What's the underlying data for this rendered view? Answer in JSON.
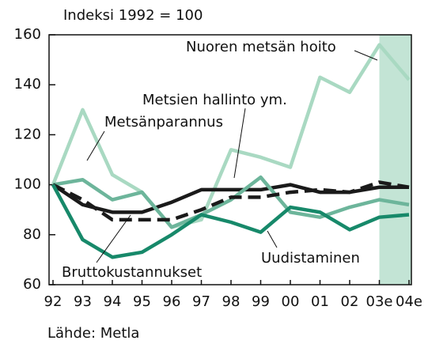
{
  "chart_data": {
    "type": "line",
    "title": "Indeksi 1992 = 100",
    "source": "Lähde: Metla",
    "categories": [
      "92",
      "93",
      "94",
      "95",
      "96",
      "97",
      "98",
      "99",
      "00",
      "01",
      "02",
      "03e",
      "04e"
    ],
    "ylim": [
      60,
      160
    ],
    "yticks": [
      60,
      80,
      100,
      120,
      140,
      160
    ],
    "series": [
      {
        "name": "Nuoren metsän hoito",
        "color": "#a9d9c2",
        "values": [
          100,
          130,
          104,
          97,
          83,
          86,
          114,
          111,
          107,
          143,
          137,
          156,
          142
        ]
      },
      {
        "name": "Metsien hallinto ym.",
        "color": "#1a1a1a",
        "values": [
          100,
          92,
          89,
          89,
          93,
          98,
          98,
          98,
          100,
          97,
          97,
          99,
          99
        ]
      },
      {
        "name": "Metsänparannus",
        "color": "#6db59b",
        "values": [
          100,
          102,
          94,
          97,
          83,
          88,
          94,
          103,
          89,
          87,
          91,
          94,
          92
        ]
      },
      {
        "name": "Bruttokustannukset",
        "color": "#1a1a1a",
        "dashed": true,
        "values": [
          100,
          94,
          86,
          86,
          86,
          90,
          95,
          95,
          97,
          98,
          97,
          101,
          99
        ]
      },
      {
        "name": "Uudistaminen",
        "color": "#17896a",
        "values": [
          100,
          78,
          71,
          73,
          80,
          88,
          85,
          81,
          91,
          89,
          82,
          87,
          88
        ]
      }
    ]
  }
}
